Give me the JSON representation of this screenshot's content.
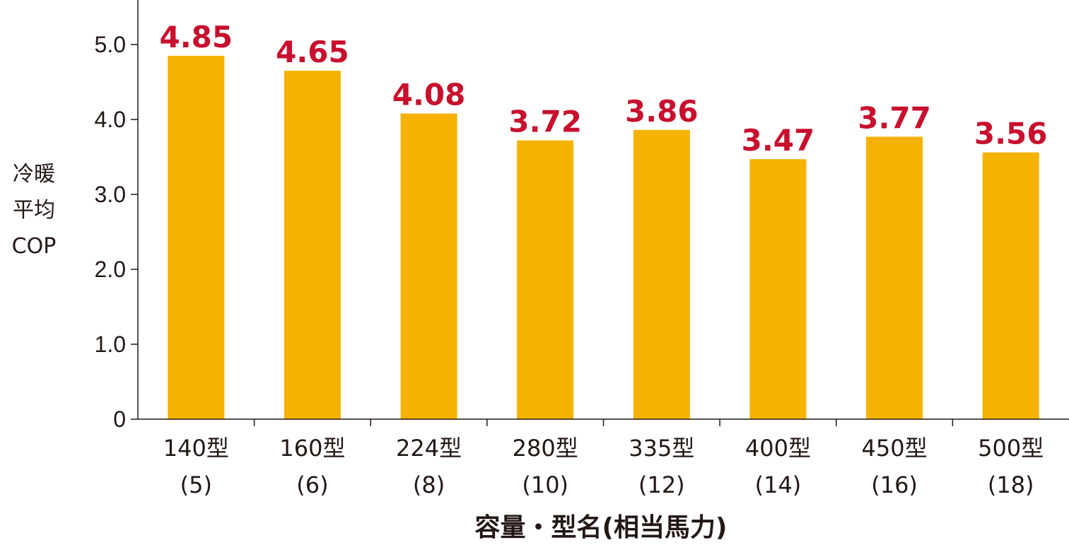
{
  "chart_data": {
    "type": "bar",
    "categories": [
      "140型",
      "160型",
      "224型",
      "280型",
      "335型",
      "400型",
      "450型",
      "500型"
    ],
    "category_sublabels": [
      "(5)",
      "(6)",
      "(8)",
      "(10)",
      "(12)",
      "(14)",
      "(16)",
      "(18)"
    ],
    "values": [
      4.85,
      4.65,
      4.08,
      3.72,
      3.86,
      3.47,
      3.77,
      3.56
    ],
    "value_labels": [
      "4.85",
      "4.65",
      "4.08",
      "3.72",
      "3.86",
      "3.47",
      "3.77",
      "3.56"
    ],
    "ylabel_lines": [
      "冷暖",
      "平均",
      "COP"
    ],
    "xlabel": "容量・型名(相当馬力)",
    "ylim": [
      0,
      5.6
    ],
    "yticks": [
      0,
      1.0,
      2.0,
      3.0,
      4.0,
      5.0
    ],
    "ytick_labels": [
      "0",
      "1.0",
      "2.0",
      "3.0",
      "4.0",
      "5.0"
    ],
    "grid": false,
    "legend": "none",
    "colors": {
      "bar": "#f5b200",
      "value_label": "#c8102e",
      "axis": "#231815",
      "text": "#231815"
    }
  }
}
